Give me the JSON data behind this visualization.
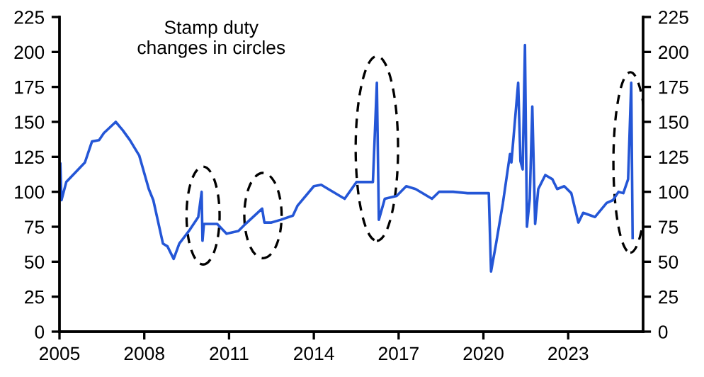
{
  "chart_data": {
    "type": "line",
    "annotations": [
      "Stamp duty\nchanges in circles"
    ],
    "series": [
      {
        "color": "#2456d6",
        "x": [
          2005.03,
          2005.07,
          2005.24,
          2005.9,
          2006.15,
          2006.4,
          2006.57,
          2006.99,
          2007.24,
          2007.49,
          2007.82,
          2008.16,
          2008.32,
          2008.66,
          2008.82,
          2009.04,
          2009.24,
          2009.58,
          2009.91,
          2010.03,
          2010.06,
          2010.11,
          2010.58,
          2010.91,
          2011.33,
          2011.58,
          2012.17,
          2012.25,
          2012.5,
          2012.83,
          2013.26,
          2013.42,
          2014.0,
          2014.26,
          2014.51,
          2015.09,
          2015.51,
          2016.09,
          2016.23,
          2016.3,
          2016.51,
          2016.93,
          2017.27,
          2017.6,
          2018.18,
          2018.43,
          2018.93,
          2019.44,
          2020.19,
          2020.27,
          2020.44,
          2020.69,
          2020.94,
          2020.99,
          2021.23,
          2021.31,
          2021.39,
          2021.47,
          2021.54,
          2021.64,
          2021.73,
          2021.83,
          2021.94,
          2022.19,
          2022.44,
          2022.61,
          2022.86,
          2023.11,
          2023.36,
          2023.53,
          2023.95,
          2024.36,
          2024.58,
          2024.78,
          2024.95,
          2025.12,
          2025.23,
          2025.28
        ],
        "values": [
          120,
          94,
          107,
          121,
          136,
          137,
          142,
          150,
          144,
          137,
          126,
          102,
          94,
          63,
          61,
          52,
          63,
          72,
          82,
          100,
          65,
          77,
          77,
          70,
          72,
          77,
          88,
          78,
          78,
          80,
          83,
          90,
          104,
          105,
          102,
          95,
          107,
          107,
          178,
          80,
          95,
          97,
          104,
          102,
          95,
          100,
          100,
          99,
          99,
          43,
          62,
          92,
          127,
          121,
          178,
          122,
          116,
          205,
          75,
          95,
          161,
          77,
          102,
          112,
          109,
          102,
          104,
          99,
          78,
          85,
          82,
          92,
          94,
          100,
          99,
          109,
          178,
          67
        ]
      }
    ],
    "xlim": [
      2005,
      2025.65
    ],
    "xticks": [
      2005,
      2008,
      2011,
      2014,
      2017,
      2020,
      2023
    ],
    "ylim": [
      0,
      225
    ],
    "yticks": [
      0,
      25,
      50,
      75,
      100,
      125,
      150,
      175,
      200,
      225
    ],
    "y2lim": [
      0,
      225
    ],
    "y2ticks": [
      0,
      25,
      50,
      75,
      100,
      125,
      150,
      175,
      200,
      225
    ],
    "grid": false,
    "legend": false
  }
}
